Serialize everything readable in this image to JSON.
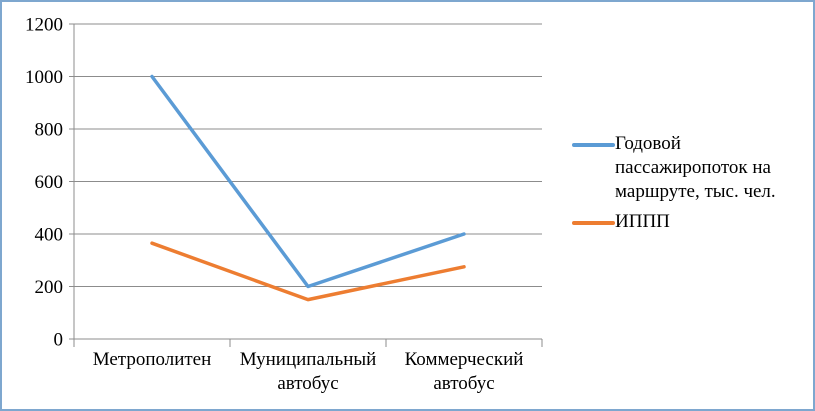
{
  "frame": {
    "border_color": "#7EA7CF",
    "background_color": "#FFFFFF"
  },
  "chart_data": {
    "type": "line",
    "title": "",
    "xlabel": "",
    "ylabel": "",
    "categories": [
      "Метрополитен",
      "Муниципальный автобус",
      "Коммерческий автобус"
    ],
    "series": [
      {
        "name": "Годовой пассажиропоток на маршруте, тыс. чел.",
        "color": "#5B9BD5",
        "values": [
          1000,
          200,
          400
        ]
      },
      {
        "name": "ИППП",
        "color": "#ED7D31",
        "values": [
          365,
          150,
          275
        ]
      }
    ],
    "ylim": [
      0,
      1200
    ],
    "ytick_step": 200,
    "yticks": [
      0,
      200,
      400,
      600,
      800,
      1000,
      1200
    ],
    "grid": true,
    "gridline_color": "#8C8C8C",
    "axis_color": "#8C8C8C",
    "text_color": "#000000",
    "legend_position": "right"
  }
}
